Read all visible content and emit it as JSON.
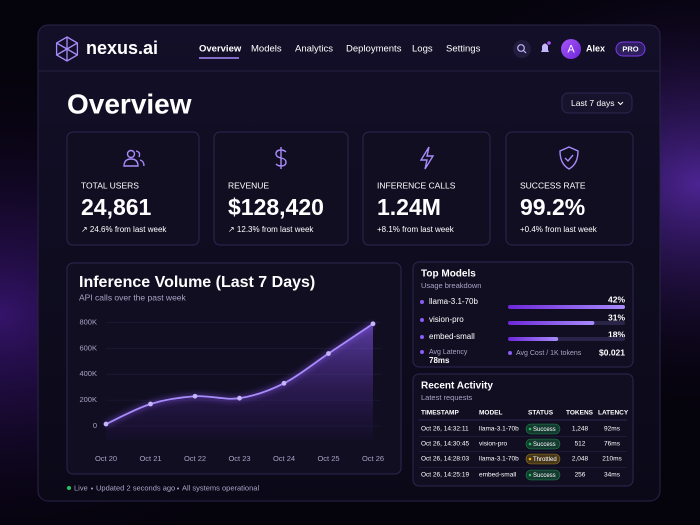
{
  "nav": {
    "brand": "nexus.ai",
    "links": [
      "Overview",
      "Models",
      "Analytics",
      "Deployments",
      "Logs",
      "Settings"
    ],
    "user_initial": "A",
    "user_name": "Alex",
    "badge": "PRO"
  },
  "header": {
    "title": "Overview",
    "range": "Last 7 days"
  },
  "kpis": [
    {
      "label": "TOTAL USERS",
      "value": "24,861",
      "change": "↗ 24.6% from last week"
    },
    {
      "label": "REVENUE",
      "value": "$128,420",
      "change": "↗ 12.3% from last week"
    },
    {
      "label": "INFERENCE CALLS",
      "value": "1.24M",
      "change": "+8.1% from last week"
    },
    {
      "label": "SUCCESS RATE",
      "value": "99.2%",
      "change": "+0.4% from last week"
    }
  ],
  "chart_data": [
    {
      "type": "area",
      "title": "Inference Volume (Last 7 Days)",
      "subtitle": "API calls over the past week",
      "categories": [
        "Oct 20",
        "Oct 21",
        "Oct 22",
        "Oct 23",
        "Oct 24",
        "Oct 25",
        "Oct 26"
      ],
      "values": [
        15000,
        170000,
        230000,
        215000,
        330000,
        560000,
        790000
      ],
      "color": "#8b5cf6",
      "ylim": [
        0,
        850000
      ],
      "yticks": [
        {
          "value": 0,
          "label": "0"
        },
        {
          "value": 200000,
          "label": "200K"
        },
        {
          "value": 400000,
          "label": "400K"
        },
        {
          "value": 600000,
          "label": "600K"
        },
        {
          "value": 800000,
          "label": "800K"
        }
      ],
      "grid": true
    },
    {
      "type": "hbar",
      "title": "Top Models",
      "subtitle": "Usage breakdown",
      "categories": [
        "llama-3.1-70b",
        "vision-pro",
        "embed-small"
      ],
      "values": [
        42,
        31,
        18
      ],
      "value_labels": [
        "42%",
        "31%",
        "18%"
      ],
      "color": "#8b5cf6"
    }
  ],
  "model_stats": [
    {
      "label": "Avg Latency",
      "value": "78ms"
    },
    {
      "label": "Avg Cost / 1K tokens",
      "value": "$0.021"
    }
  ],
  "activity": {
    "title": "Recent Activity",
    "subtitle": "Latest requests",
    "columns": [
      "TIMESTAMP",
      "MODEL",
      "STATUS",
      "TOKENS",
      "LATENCY"
    ],
    "rows": [
      {
        "timestamp": "Oct 26, 14:32:11",
        "model": "llama-3.1-70b",
        "status": "Success",
        "status_color": "#22c55e",
        "tokens": "1,248",
        "latency": "92ms"
      },
      {
        "timestamp": "Oct 26, 14:30:45",
        "model": "vision-pro",
        "status": "Success",
        "status_color": "#22c55e",
        "tokens": "512",
        "latency": "76ms"
      },
      {
        "timestamp": "Oct 26, 14:28:03",
        "model": "llama-3.1-70b",
        "status": "Throttled",
        "status_color": "#eab308",
        "tokens": "2,048",
        "latency": "210ms"
      },
      {
        "timestamp": "Oct 26, 14:25:19",
        "model": "embed-small",
        "status": "Success",
        "status_color": "#22c55e",
        "tokens": "256",
        "latency": "34ms"
      }
    ]
  },
  "status": {
    "live": "Live",
    "updated": "Updated 2 seconds ago",
    "systems": "All systems operational"
  }
}
